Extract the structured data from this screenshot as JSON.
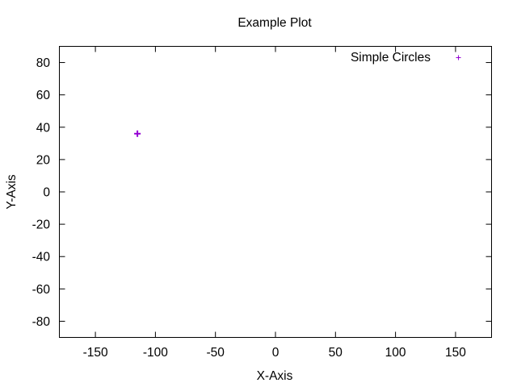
{
  "chart_data": {
    "type": "scatter",
    "title": "Example Plot",
    "xlabel": "X-Axis",
    "ylabel": "Y-Axis",
    "xlim": [
      -180,
      180
    ],
    "ylim": [
      -90,
      90
    ],
    "x_ticks": [
      -150,
      -100,
      -50,
      0,
      50,
      100,
      150
    ],
    "y_ticks": [
      80,
      60,
      40,
      20,
      0,
      -20,
      -40,
      -60,
      -80
    ],
    "x_tick_labels": [
      "-150",
      "-100",
      "-50",
      "0",
      "50",
      "100",
      "150"
    ],
    "y_tick_labels": [
      "80",
      "60",
      "40",
      "20",
      "0",
      "-20",
      "-40",
      "-60",
      "-80"
    ],
    "grid": false,
    "legend_position": "top-right",
    "series": [
      {
        "name": "Simple Circles",
        "color": "#9400d3",
        "marker": "plus",
        "points": [
          {
            "x": -115,
            "y": 36
          }
        ]
      }
    ]
  }
}
